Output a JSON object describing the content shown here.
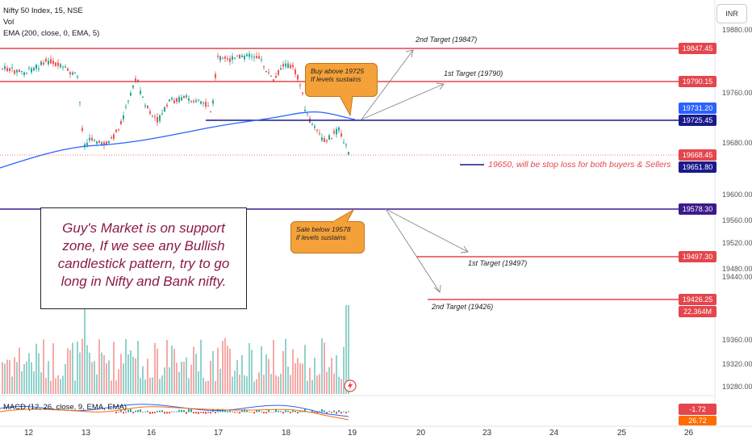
{
  "header": {
    "symbol_line": "Nifty 50 Index, 15, NSE",
    "vol_label": "Vol",
    "ema_label": "EMA (200, close, 0, EMA, 5)",
    "currency_button": "INR"
  },
  "price_axis": {
    "ticks": [
      "19880.00",
      "19760.00",
      "19680.00",
      "19600.00",
      "19560.00",
      "19520.00",
      "19480.00",
      "19440.00",
      "19360.00",
      "19320.00",
      "19280.00"
    ]
  },
  "price_tags": [
    {
      "label": "19847.45",
      "color": "#e5454c"
    },
    {
      "label": "19790.15",
      "color": "#e5454c"
    },
    {
      "label": "19731.20",
      "color": "#2962ff"
    },
    {
      "label": "19725.45",
      "color": "#1a1a8c"
    },
    {
      "label": "19668.45",
      "color": "#e5454c"
    },
    {
      "label": "19651.80",
      "color": "#1a1a8c"
    },
    {
      "label": "19578.30",
      "color": "#3c1a8c"
    },
    {
      "label": "19497.30",
      "color": "#e5454c"
    },
    {
      "label": "19426.25",
      "color": "#e5454c"
    },
    {
      "label": "22.364M",
      "color": "#e5454c"
    }
  ],
  "x_axis": {
    "labels": [
      "12",
      "13",
      "16",
      "17",
      "18",
      "19",
      "20",
      "23",
      "24",
      "25",
      "26"
    ]
  },
  "annotations": {
    "upper_target_2": "2nd Target (19847)",
    "upper_target_1": "1st Target (19790)",
    "buy_callout_line1": "Buy above 19725",
    "buy_callout_line2": "If levels sustains",
    "stop_loss": "19650, will be stop loss for both buyers & Sellers",
    "sell_callout_line1": "Sale below 19578",
    "sell_callout_line2": "if levels sustains",
    "lower_target_1": "1st Target (19497)",
    "lower_target_2": "2nd Target (19426)",
    "note_line1": "Guy's Market is on support",
    "note_line2": "zone, If we see any Bullish",
    "note_line3": "candlestick pattern, try to go",
    "note_line4": "long in Nifty and Bank nifty."
  },
  "macd": {
    "label": "MACD (12, 26, close, 9, EMA, EMA)",
    "value_tag": "-1.72",
    "value_tag2": "26.72"
  },
  "colors": {
    "up": "#26a69a",
    "down": "#ef5350",
    "target_line": "#e5454c",
    "ema": "#2962ff",
    "navy_line": "#1a1a8c",
    "support_line": "#3c1a8c"
  }
}
